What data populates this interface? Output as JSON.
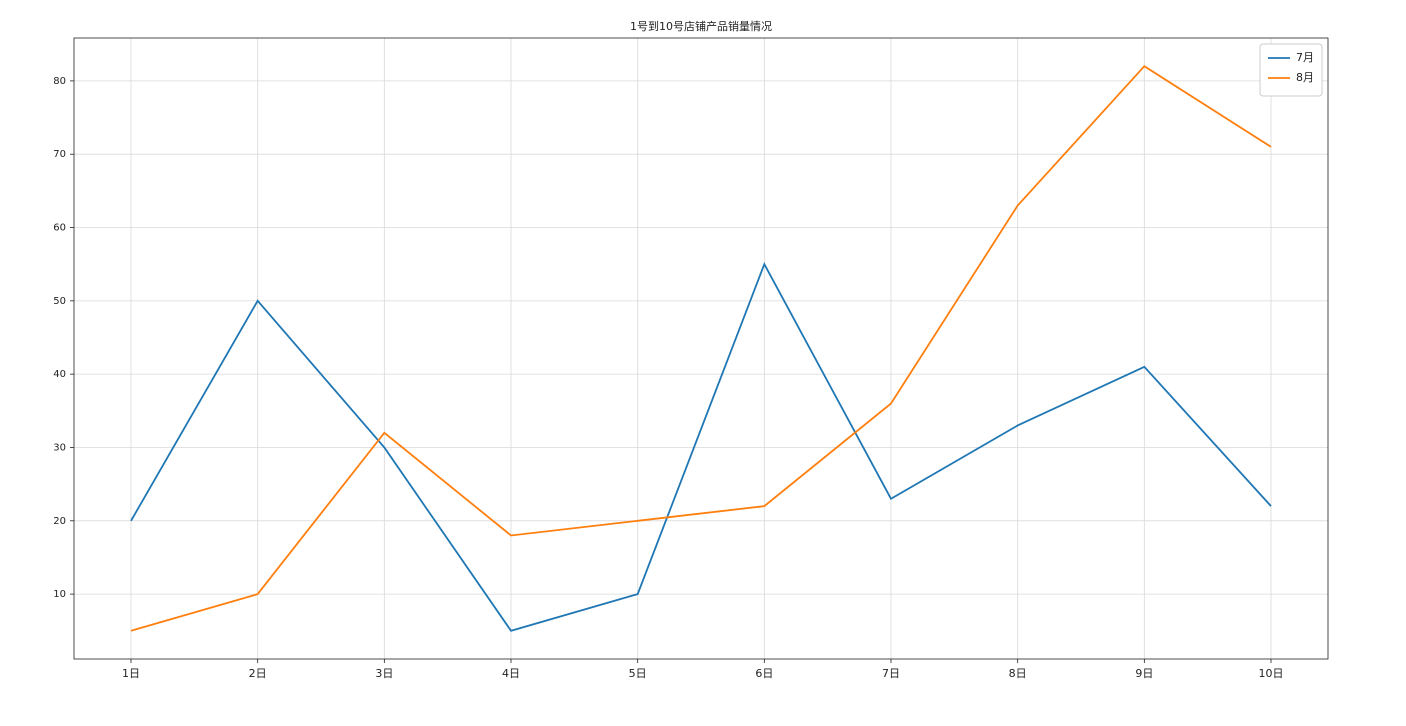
{
  "chart_data": {
    "type": "line",
    "title": "1号到10号店铺产品销量情况",
    "categories": [
      "1日",
      "2日",
      "3日",
      "4日",
      "5日",
      "6日",
      "7日",
      "8日",
      "9日",
      "10日"
    ],
    "series": [
      {
        "name": "7月",
        "color": "#1f77b4",
        "values": [
          20,
          50,
          30,
          5,
          10,
          55,
          23,
          33,
          41,
          22
        ]
      },
      {
        "name": "8月",
        "color": "#ff7f0e",
        "values": [
          5,
          10,
          32,
          18,
          20,
          22,
          36,
          63,
          82,
          71
        ]
      }
    ],
    "ylim": [
      1.15,
      85.85
    ],
    "yticks": [
      10,
      20,
      30,
      40,
      50,
      60,
      70,
      80
    ],
    "grid": true,
    "legend": "upper right"
  }
}
